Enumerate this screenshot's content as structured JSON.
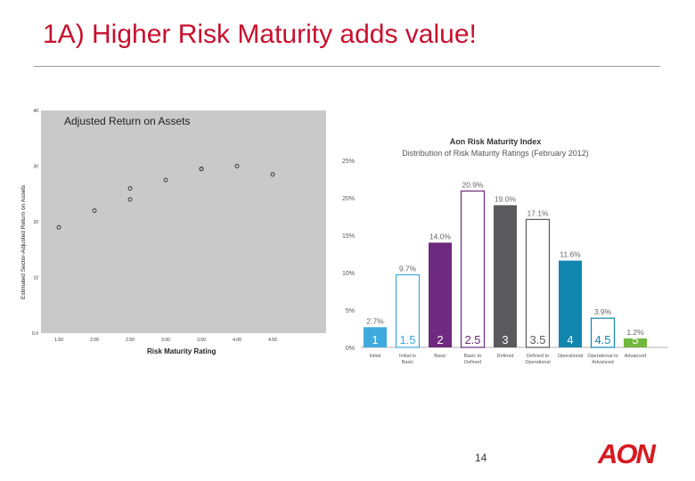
{
  "slide": {
    "title": "1A) Higher Risk Maturity adds value!",
    "page_number": "14",
    "logo_text": "AON"
  },
  "colors": {
    "title_red": "#c8102e",
    "plot_bg": "#c9c9c9",
    "aon_red": "#d71920"
  },
  "chart_data": [
    {
      "type": "scatter",
      "title": "Adjusted Return on Assets",
      "xlabel": "Risk Maturity Rating",
      "ylabel": "Estimated Sector-Adjusted Return on Assets",
      "xlim": [
        1.25,
        5.25
      ],
      "ylim": [
        0,
        40
      ],
      "x_ticks": [
        "1.50",
        "2.00",
        "2.50",
        "3.00",
        "3.50",
        "4.00",
        "4.50"
      ],
      "y_ticks": [
        "0.0",
        "10",
        "20",
        "30",
        "40"
      ],
      "x": [
        1.5,
        2.0,
        2.5,
        2.5,
        3.0,
        3.5,
        3.5,
        4.0,
        4.5
      ],
      "y": [
        19,
        22,
        24,
        26,
        27.5,
        29.5,
        29.5,
        30,
        28.5
      ]
    },
    {
      "type": "bar",
      "title": "Aon Risk Maturity Index",
      "subtitle": "Distribution of Risk Maturity Ratings (February 2012)",
      "ylim": [
        0,
        25
      ],
      "y_ticks": [
        "0%",
        "5%",
        "10%",
        "15%",
        "20%",
        "25%"
      ],
      "levels": [
        "1",
        "1.5",
        "2",
        "2.5",
        "3",
        "3.5",
        "4",
        "4.5",
        "5"
      ],
      "values": [
        2.7,
        9.7,
        14.0,
        20.9,
        19.0,
        17.1,
        11.6,
        3.9,
        1.2
      ],
      "value_labels": [
        "2.7%",
        "9.7%",
        "14.0%",
        "20.9%",
        "19.0%",
        "17.1%",
        "11.6%",
        "3.9%",
        "1.2%"
      ],
      "categories": [
        "Initial",
        "Initial to Basic",
        "Basic",
        "Basic to Defined",
        "Defined",
        "Defined to Operational",
        "Operational",
        "Operational to Advanced",
        "Advanced"
      ],
      "colors": [
        "#3ea9dd",
        "#3ea9dd",
        "#6d2a7e",
        "#6d2a7e",
        "#5a5a5c",
        "#5a5a5c",
        "#1187b0",
        "#1187b0",
        "#72b83f"
      ],
      "fill": [
        "solid",
        "outline",
        "solid",
        "outline",
        "solid",
        "outline",
        "solid",
        "outline",
        "solid"
      ]
    }
  ]
}
